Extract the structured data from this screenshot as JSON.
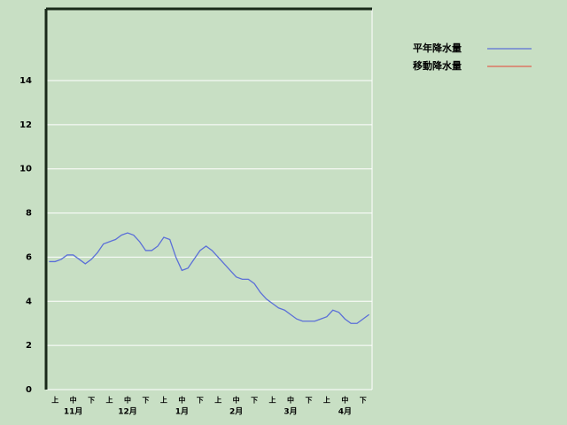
{
  "chart_data": {
    "type": "line",
    "categories": [
      null,
      "上",
      null,
      null,
      "中",
      null,
      null,
      "下",
      null,
      null,
      "上",
      null,
      null,
      "中",
      null,
      null,
      "下",
      null,
      null,
      "上",
      null,
      null,
      "中",
      null,
      null,
      "下",
      null,
      null,
      "上",
      null,
      null,
      "中",
      null,
      null,
      "下",
      null,
      null,
      "上",
      null,
      null,
      "中",
      null,
      null,
      "下",
      null,
      null,
      "上",
      null,
      null,
      "中",
      null,
      null,
      "下",
      null
    ],
    "month_labels": [
      "11月",
      "12月",
      "1月",
      "2月",
      "3月",
      "4月"
    ],
    "series": [
      {
        "name": "平年降水量",
        "color": "#5b6fd8",
        "values": [
          5.8,
          5.8,
          5.9,
          6.1,
          6.1,
          5.9,
          5.7,
          5.9,
          6.2,
          6.6,
          6.7,
          6.8,
          7.0,
          7.1,
          7.0,
          6.7,
          6.3,
          6.3,
          6.5,
          6.9,
          6.8,
          6.0,
          5.4,
          5.5,
          5.9,
          6.3,
          6.5,
          6.3,
          6.0,
          5.7,
          5.4,
          5.1,
          5.0,
          5.0,
          4.8,
          4.4,
          4.1,
          3.9,
          3.7,
          3.6,
          3.4,
          3.2,
          3.1,
          3.1,
          3.1,
          3.2,
          3.3,
          3.6,
          3.5,
          3.2,
          3.0,
          3.0,
          3.2,
          3.4
        ]
      },
      {
        "name": "移動降水量",
        "color": "#e06050",
        "values": [
          null,
          null,
          null,
          null,
          null,
          null,
          null,
          null,
          null,
          null,
          null,
          null,
          null,
          null,
          null,
          null,
          null,
          null,
          null,
          null,
          null,
          null,
          null,
          null,
          null,
          null,
          null,
          null,
          null,
          null,
          null,
          null,
          null,
          null,
          null,
          null,
          null,
          null,
          null,
          null,
          null,
          null,
          null,
          null,
          null,
          null,
          null,
          null,
          null,
          null,
          null,
          null,
          null,
          null
        ]
      }
    ],
    "ylim": [
      0,
      17.25
    ],
    "yticks": [
      0,
      2,
      4,
      6,
      8,
      10,
      12,
      14
    ],
    "grid": true
  }
}
